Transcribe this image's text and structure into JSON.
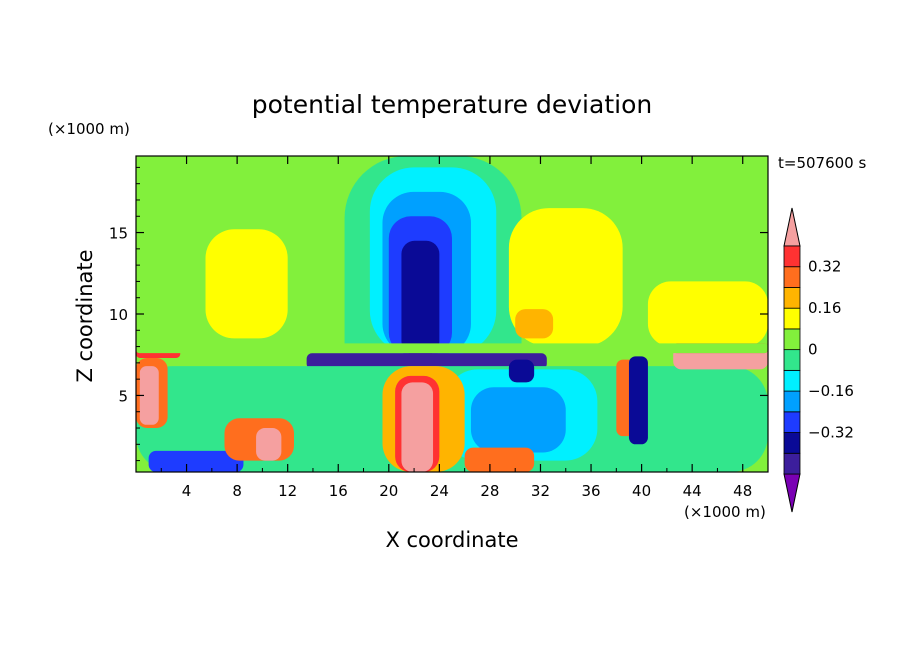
{
  "chart_data": {
    "type": "heatmap",
    "title": "potential temperature deviation",
    "xlabel": "X coordinate",
    "ylabel": "Z coordinate",
    "x_unit": "(×1000 m)",
    "y_unit": "(×1000 m)",
    "time_label": "t=507600 s",
    "xlim": [
      0,
      50
    ],
    "ylim": [
      0.3,
      19.7
    ],
    "x_ticks": [
      4,
      8,
      12,
      16,
      20,
      24,
      28,
      32,
      36,
      40,
      44,
      48
    ],
    "y_ticks": [
      5,
      10,
      15
    ],
    "colorbar": {
      "levels": [
        -0.48,
        -0.4,
        -0.32,
        -0.24,
        -0.16,
        -0.08,
        0,
        0.08,
        0.16,
        0.24,
        0.32,
        0.4
      ],
      "colors": [
        "#7a00b4",
        "#3c1e9c",
        "#0a0a96",
        "#1e3cff",
        "#00a0ff",
        "#00f0ff",
        "#32e68c",
        "#82f03c",
        "#ffff00",
        "#ffb400",
        "#ff6e1e",
        "#ff3232",
        "#f5a0a0"
      ],
      "tick_labels": [
        "0.32",
        "0.16",
        "0",
        "−0.16",
        "−0.32"
      ],
      "tick_values": [
        0.32,
        0.16,
        0,
        -0.16,
        -0.32
      ]
    },
    "field_regions": [
      {
        "x": [
          0,
          50
        ],
        "z": [
          0.3,
          19.7
        ],
        "value": 0.04
      },
      {
        "x": [
          16.5,
          30.5
        ],
        "z": [
          0.3,
          19.7
        ],
        "value": -0.02
      },
      {
        "x": [
          18.5,
          28.5
        ],
        "z": [
          7.5,
          19.0
        ],
        "value": -0.1
      },
      {
        "x": [
          19.5,
          26.5
        ],
        "z": [
          7.5,
          17.5
        ],
        "value": -0.2
      },
      {
        "x": [
          20.0,
          25.0
        ],
        "z": [
          7.5,
          16.0
        ],
        "value": -0.28
      },
      {
        "x": [
          21.0,
          24.0
        ],
        "z": [
          7.5,
          14.5
        ],
        "value": -0.36
      },
      {
        "x": [
          13.5,
          32.5
        ],
        "z": [
          6.6,
          7.6
        ],
        "value": -0.42
      },
      {
        "x": [
          5.5,
          12.0
        ],
        "z": [
          8.5,
          15.2
        ],
        "value": 0.12
      },
      {
        "x": [
          29.5,
          38.5
        ],
        "z": [
          8.0,
          16.5
        ],
        "value": 0.12
      },
      {
        "x": [
          30.0,
          33.0
        ],
        "z": [
          8.5,
          10.3
        ],
        "value": 0.2
      },
      {
        "x": [
          40.5,
          50
        ],
        "z": [
          8.0,
          12.0
        ],
        "value": 0.12
      },
      {
        "x": [
          0,
          50
        ],
        "z": [
          0.3,
          6.8
        ],
        "value": -0.04
      },
      {
        "x": [
          24.5,
          36.5
        ],
        "z": [
          1.0,
          6.6
        ],
        "value": -0.12
      },
      {
        "x": [
          26.5,
          34.0
        ],
        "z": [
          1.5,
          5.5
        ],
        "value": -0.2
      },
      {
        "x": [
          1.0,
          8.5
        ],
        "z": [
          0.3,
          1.6
        ],
        "value": -0.28
      },
      {
        "x": [
          7.0,
          12.5
        ],
        "z": [
          1.0,
          3.6
        ],
        "value": 0.28
      },
      {
        "x": [
          9.5,
          11.5
        ],
        "z": [
          1.0,
          3.0
        ],
        "value": 0.44
      },
      {
        "x": [
          0,
          2.5
        ],
        "z": [
          3.0,
          7.3
        ],
        "value": 0.28
      },
      {
        "x": [
          0.3,
          1.8
        ],
        "z": [
          3.2,
          6.8
        ],
        "value": 0.44
      },
      {
        "x": [
          19.5,
          26.0
        ],
        "z": [
          0.3,
          6.8
        ],
        "value": 0.2
      },
      {
        "x": [
          20.5,
          24.0
        ],
        "z": [
          0.3,
          6.2
        ],
        "value": 0.36
      },
      {
        "x": [
          21.0,
          23.5
        ],
        "z": [
          0.3,
          5.8
        ],
        "value": 0.44
      },
      {
        "x": [
          26.0,
          31.5
        ],
        "z": [
          0.3,
          1.8
        ],
        "value": 0.28
      },
      {
        "x": [
          38.0,
          39.5
        ],
        "z": [
          2.5,
          7.2
        ],
        "value": 0.28
      },
      {
        "x": [
          39.0,
          40.5
        ],
        "z": [
          2.0,
          7.4
        ],
        "value": -0.36
      },
      {
        "x": [
          42.5,
          50
        ],
        "z": [
          6.6,
          8.0
        ],
        "value": 0.44
      },
      {
        "x": [
          42.5,
          50
        ],
        "z": [
          7.6,
          8.2
        ],
        "value": 0.32
      },
      {
        "x": [
          0,
          3.5
        ],
        "z": [
          7.3,
          8.0
        ],
        "value": 0.36
      },
      {
        "x": [
          29.5,
          31.5
        ],
        "z": [
          5.8,
          7.2
        ],
        "value": -0.4
      },
      {
        "x": [
          0,
          50
        ],
        "z": [
          7.6,
          8.2
        ],
        "value": 0.06
      }
    ]
  }
}
